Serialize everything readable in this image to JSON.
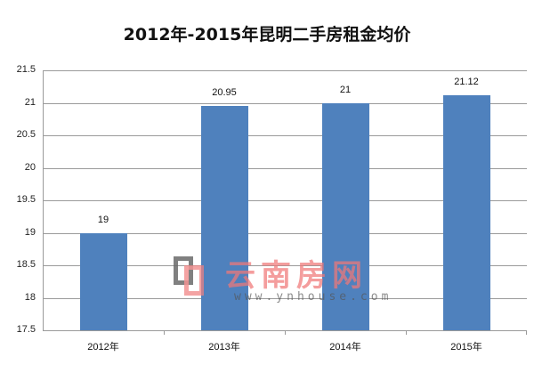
{
  "chart_data": {
    "type": "bar",
    "title": "2012年-2015年昆明二手房租金均价",
    "categories": [
      "2012年",
      "2013年",
      "2014年",
      "2015年"
    ],
    "values": [
      19,
      20.95,
      21,
      21.12
    ],
    "value_labels": [
      "19",
      "20.95",
      "21",
      "21.12"
    ],
    "xlabel": "",
    "ylabel": "",
    "ylim": [
      17.5,
      21.5
    ],
    "yticks": [
      "21.5",
      "21",
      "20.5",
      "20",
      "19.5",
      "19",
      "18.5",
      "18",
      "17.5"
    ],
    "grid": true,
    "legend": "none",
    "bar_color": "#4f81bd"
  },
  "watermark": {
    "text": "云南房网",
    "url": "www.ynhouse.com"
  }
}
